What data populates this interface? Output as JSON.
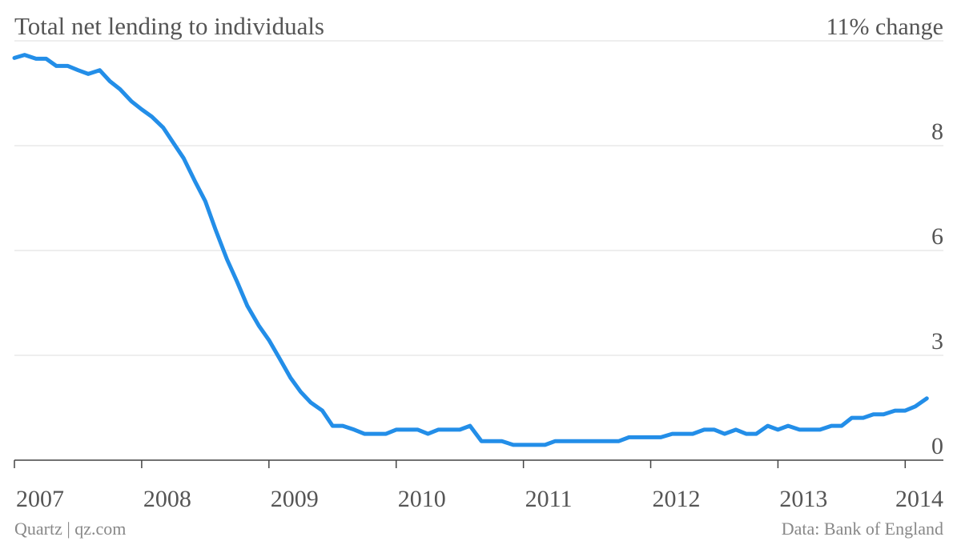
{
  "chart_data": {
    "type": "line",
    "title": "Total net lending to individuals",
    "source": "Data: Bank of England",
    "credit": "Quartz | qz.com",
    "x": [
      2007,
      2007.08,
      2007.17,
      2007.25,
      2007.33,
      2007.42,
      2007.5,
      2007.58,
      2007.67,
      2007.75,
      2007.83,
      2007.92,
      2008,
      2008.08,
      2008.17,
      2008.25,
      2008.33,
      2008.42,
      2008.5,
      2008.58,
      2008.67,
      2008.75,
      2008.83,
      2008.92,
      2009,
      2009.08,
      2009.17,
      2009.25,
      2009.33,
      2009.42,
      2009.5,
      2009.58,
      2009.67,
      2009.75,
      2009.83,
      2009.92,
      2010,
      2010.08,
      2010.17,
      2010.25,
      2010.33,
      2010.42,
      2010.5,
      2010.58,
      2010.67,
      2010.75,
      2010.83,
      2010.92,
      2011,
      2011.08,
      2011.17,
      2011.25,
      2011.33,
      2011.42,
      2011.5,
      2011.58,
      2011.67,
      2011.75,
      2011.83,
      2011.92,
      2012,
      2012.08,
      2012.17,
      2012.25,
      2012.33,
      2012.42,
      2012.5,
      2012.58,
      2012.67,
      2012.75,
      2012.83,
      2012.92,
      2013,
      2013.08,
      2013.17,
      2013.25,
      2013.33,
      2013.42,
      2013.5,
      2013.58,
      2013.67,
      2013.75,
      2013.83,
      2013.92,
      2014,
      2014.08,
      2014.17
    ],
    "series": [
      {
        "name": "Total net lending to individuals",
        "color": "#238ee8",
        "values": [
          10.55,
          10.63,
          10.53,
          10.53,
          10.34,
          10.34,
          10.23,
          10.13,
          10.23,
          9.94,
          9.73,
          9.41,
          9.2,
          9.01,
          8.72,
          8.32,
          7.92,
          7.31,
          6.79,
          6.05,
          5.27,
          4.68,
          4.05,
          3.53,
          3.15,
          2.69,
          2.16,
          1.79,
          1.51,
          1.3,
          0.9,
          0.9,
          0.8,
          0.69,
          0.69,
          0.69,
          0.8,
          0.8,
          0.8,
          0.69,
          0.8,
          0.8,
          0.8,
          0.9,
          0.5,
          0.5,
          0.5,
          0.4,
          0.4,
          0.4,
          0.4,
          0.5,
          0.5,
          0.5,
          0.5,
          0.5,
          0.5,
          0.5,
          0.6,
          0.6,
          0.6,
          0.6,
          0.69,
          0.69,
          0.69,
          0.8,
          0.8,
          0.69,
          0.8,
          0.69,
          0.69,
          0.9,
          0.8,
          0.9,
          0.8,
          0.8,
          0.8,
          0.9,
          0.9,
          1.11,
          1.11,
          1.2,
          1.2,
          1.3,
          1.3,
          1.41,
          1.62
        ]
      }
    ],
    "xlim": [
      2007,
      2014.3
    ],
    "xticks": [
      2007,
      2008,
      2009,
      2010,
      2011,
      2012,
      2013,
      2014
    ],
    "ylim": [
      0,
      11
    ],
    "yticks": [
      0,
      {
        "value": 2.75,
        "label": "3"
      },
      {
        "value": 5.5,
        "label": "6"
      },
      {
        "value": 8.25,
        "label": "8"
      },
      {
        "value": 11,
        "label": "11% change"
      }
    ],
    "grid": true
  }
}
